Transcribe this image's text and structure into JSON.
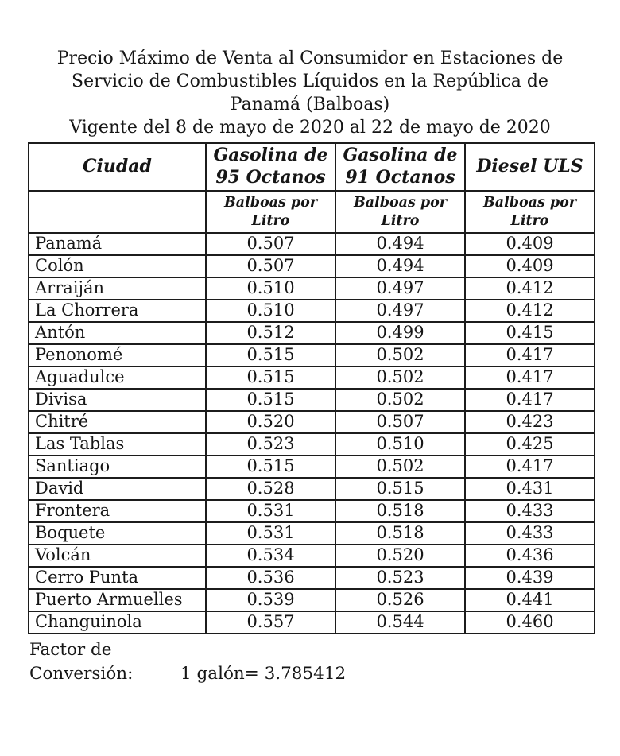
{
  "title": "Precio Máximo de Venta al Consumidor en Estaciones de Servicio de Combustibles Líquidos en la República de Panamá (Balboas)",
  "subtitle": "Vigente del 8 de mayo de 2020 al 22 de mayo de 2020",
  "colors": {
    "text": "#161616",
    "border": "#1c1c1c",
    "background": "#ffffff"
  },
  "table": {
    "columns": [
      {
        "label": "Ciudad",
        "unit": ""
      },
      {
        "label": "Gasolina de\n95 Octanos",
        "unit": "Balboas por\nLitro"
      },
      {
        "label": "Gasolina de\n91 Octanos",
        "unit": "Balboas por\nLitro"
      },
      {
        "label": "Diesel ULS",
        "unit": "Balboas por\nLitro"
      }
    ],
    "rows": [
      {
        "city": "Panamá",
        "gas95": "0.507",
        "gas91": "0.494",
        "diesel": "0.409"
      },
      {
        "city": "Colón",
        "gas95": "0.507",
        "gas91": "0.494",
        "diesel": "0.409"
      },
      {
        "city": "Arraiján",
        "gas95": "0.510",
        "gas91": "0.497",
        "diesel": "0.412"
      },
      {
        "city": "La Chorrera",
        "gas95": "0.510",
        "gas91": "0.497",
        "diesel": "0.412"
      },
      {
        "city": "Antón",
        "gas95": "0.512",
        "gas91": "0.499",
        "diesel": "0.415"
      },
      {
        "city": "Penonomé",
        "gas95": "0.515",
        "gas91": "0.502",
        "diesel": "0.417"
      },
      {
        "city": "Aguadulce",
        "gas95": "0.515",
        "gas91": "0.502",
        "diesel": "0.417"
      },
      {
        "city": "Divisa",
        "gas95": "0.515",
        "gas91": "0.502",
        "diesel": "0.417"
      },
      {
        "city": "Chitré",
        "gas95": "0.520",
        "gas91": "0.507",
        "diesel": "0.423"
      },
      {
        "city": "Las Tablas",
        "gas95": "0.523",
        "gas91": "0.510",
        "diesel": "0.425"
      },
      {
        "city": "Santiago",
        "gas95": "0.515",
        "gas91": "0.502",
        "diesel": "0.417"
      },
      {
        "city": "David",
        "gas95": "0.528",
        "gas91": "0.515",
        "diesel": "0.431"
      },
      {
        "city": "Frontera",
        "gas95": "0.531",
        "gas91": "0.518",
        "diesel": "0.433"
      },
      {
        "city": "Boquete",
        "gas95": "0.531",
        "gas91": "0.518",
        "diesel": "0.433"
      },
      {
        "city": "Volcán",
        "gas95": "0.534",
        "gas91": "0.520",
        "diesel": "0.436"
      },
      {
        "city": "Cerro Punta",
        "gas95": "0.536",
        "gas91": "0.523",
        "diesel": "0.439"
      },
      {
        "city": "Puerto Armuelles",
        "gas95": "0.539",
        "gas91": "0.526",
        "diesel": "0.441"
      },
      {
        "city": "Changuinola",
        "gas95": "0.557",
        "gas91": "0.544",
        "diesel": "0.460"
      }
    ]
  },
  "footer": {
    "label": "Factor de Conversión:",
    "value": "1 galón= 3.785412"
  }
}
